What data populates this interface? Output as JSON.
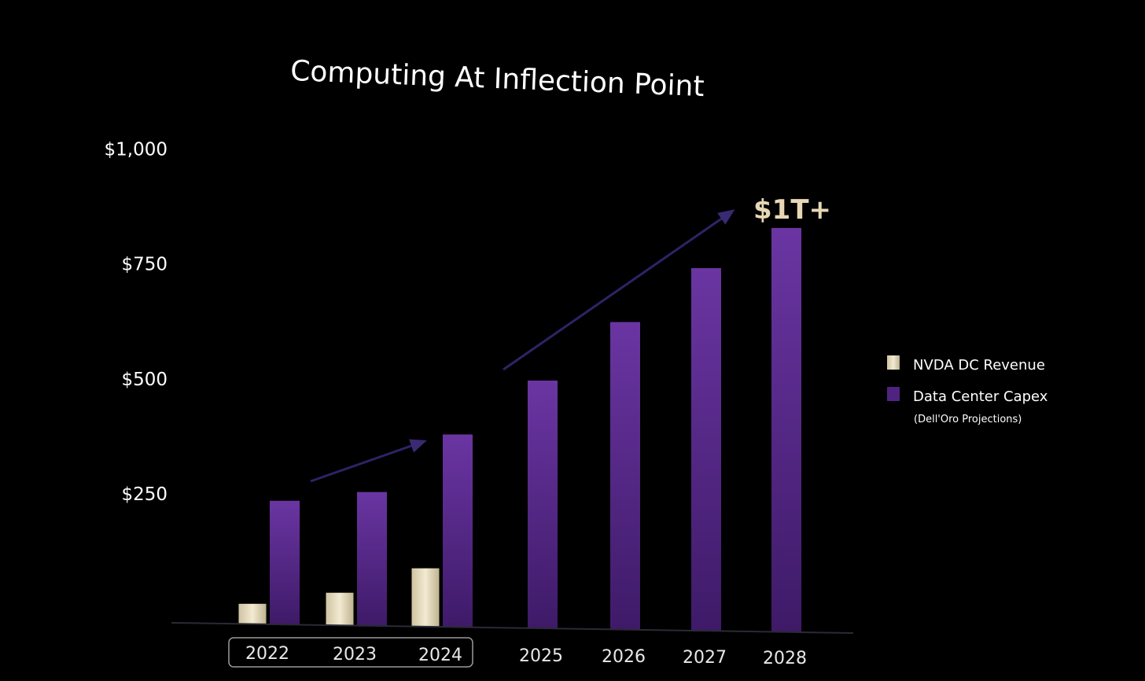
{
  "chart_data": {
    "type": "bar",
    "title": "Computing At Inflection Point",
    "categories": [
      "2022",
      "2023",
      "2024",
      "2025",
      "2026",
      "2027",
      "2028"
    ],
    "series": [
      {
        "name": "NVDA DC Revenue",
        "color": "#e9e0c6",
        "values": [
          15,
          42,
          98,
          null,
          null,
          null,
          null
        ]
      },
      {
        "name": "Data Center Capex",
        "note": "(Dell'Oro Projections)",
        "color": "#5a2a8c",
        "values": [
          240,
          262,
          390,
          510,
          640,
          760,
          850
        ]
      }
    ],
    "ylim": [
      0,
      1000
    ],
    "yticks": [
      250,
      500,
      750,
      1000
    ],
    "ytick_labels": [
      "$250",
      "$500",
      "$750",
      "$1,000"
    ],
    "highlighted_categories": [
      "2022",
      "2023",
      "2024"
    ],
    "annotation": "$1T+",
    "legend_position": "right",
    "grid": false
  }
}
